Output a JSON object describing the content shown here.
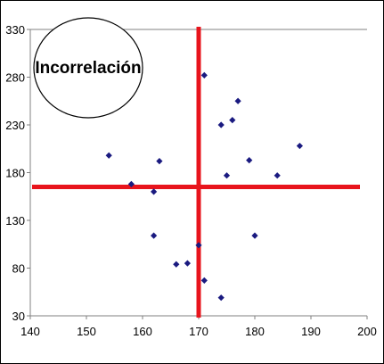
{
  "chart_data": {
    "type": "scatter",
    "title": "",
    "xlabel": "",
    "ylabel": "",
    "xlim": [
      140,
      200
    ],
    "ylim": [
      30,
      330
    ],
    "x_ticks": [
      140,
      150,
      160,
      170,
      180,
      190,
      200
    ],
    "y_ticks": [
      30,
      80,
      130,
      180,
      230,
      280,
      330
    ],
    "grid": "horizontal-top",
    "annotation": "Incorrelación",
    "colors": {
      "points": "#1a1a80",
      "reference_lines": "#e8141c",
      "axes": "#808080"
    },
    "reference_lines": {
      "vertical_x": 170,
      "horizontal_y": 165
    },
    "points": [
      {
        "x": 154,
        "y": 198
      },
      {
        "x": 158,
        "y": 168
      },
      {
        "x": 162,
        "y": 160
      },
      {
        "x": 162,
        "y": 114
      },
      {
        "x": 163,
        "y": 192
      },
      {
        "x": 166,
        "y": 84
      },
      {
        "x": 168,
        "y": 85
      },
      {
        "x": 170,
        "y": 104
      },
      {
        "x": 171,
        "y": 282
      },
      {
        "x": 171,
        "y": 67
      },
      {
        "x": 174,
        "y": 230
      },
      {
        "x": 174,
        "y": 49
      },
      {
        "x": 175,
        "y": 177
      },
      {
        "x": 176,
        "y": 235
      },
      {
        "x": 177,
        "y": 255
      },
      {
        "x": 179,
        "y": 193
      },
      {
        "x": 180,
        "y": 114
      },
      {
        "x": 184,
        "y": 177
      },
      {
        "x": 188,
        "y": 208
      }
    ]
  }
}
